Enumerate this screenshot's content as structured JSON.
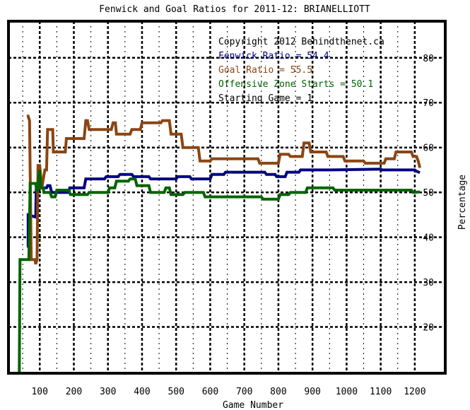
{
  "chart_data": {
    "type": "line",
    "title": "Fenwick and Goal Ratios for 2011-12: BRIANELLIOTT",
    "xlabel": "Game Number",
    "ylabel": "Percentage",
    "xlim": [
      0,
      1250
    ],
    "ylim": [
      10,
      88
    ],
    "x_ticks": [
      100,
      200,
      300,
      400,
      500,
      600,
      700,
      800,
      900,
      1000,
      1100,
      1200
    ],
    "y_ticks": [
      20,
      30,
      40,
      50,
      60,
      70,
      80
    ],
    "grid": true,
    "annotations": [
      {
        "text": "Copyright 2012 Behindthenet.ca",
        "color": "#000000"
      },
      {
        "text": "Fenwick Ratio = 54.4",
        "color": "#000080"
      },
      {
        "text": "Goal Ratio = 55.5",
        "color": "#8B4513"
      },
      {
        "text": "Offensive Zone Starts = 50.1",
        "color": "#006400"
      },
      {
        "text": "Starting Game = 1",
        "color": "#000000"
      }
    ],
    "series": [
      {
        "name": "Fenwick Ratio",
        "color": "#000080",
        "points": [
          [
            62,
            38
          ],
          [
            66,
            38
          ],
          [
            66,
            45
          ],
          [
            88,
            44.5
          ],
          [
            90,
            52
          ],
          [
            98,
            52
          ],
          [
            100,
            51
          ],
          [
            120,
            51
          ],
          [
            123,
            51.5
          ],
          [
            130,
            51.5
          ],
          [
            135,
            50
          ],
          [
            185,
            50
          ],
          [
            188,
            51
          ],
          [
            230,
            51
          ],
          [
            235,
            53
          ],
          [
            290,
            53
          ],
          [
            295,
            53.5
          ],
          [
            330,
            53.5
          ],
          [
            335,
            54
          ],
          [
            370,
            54
          ],
          [
            375,
            53.5
          ],
          [
            420,
            53.5
          ],
          [
            425,
            53
          ],
          [
            500,
            53
          ],
          [
            505,
            53.5
          ],
          [
            540,
            53.5
          ],
          [
            545,
            53
          ],
          [
            600,
            53
          ],
          [
            605,
            54
          ],
          [
            640,
            54
          ],
          [
            645,
            54.5
          ],
          [
            760,
            54.5
          ],
          [
            765,
            54
          ],
          [
            790,
            54
          ],
          [
            795,
            53.5
          ],
          [
            820,
            53.5
          ],
          [
            825,
            54.5
          ],
          [
            860,
            54.5
          ],
          [
            865,
            55
          ],
          [
            950,
            55
          ],
          [
            955,
            55
          ],
          [
            1100,
            55.2
          ],
          [
            1105,
            55
          ],
          [
            1200,
            55
          ],
          [
            1205,
            54.7
          ],
          [
            1215,
            54.4
          ]
        ]
      },
      {
        "name": "Goal Ratio",
        "color": "#8B4513",
        "points": [
          [
            62,
            67
          ],
          [
            66,
            67
          ],
          [
            70,
            66
          ],
          [
            75,
            35
          ],
          [
            82,
            35
          ],
          [
            86,
            35
          ],
          [
            88,
            34
          ],
          [
            92,
            35
          ],
          [
            95,
            56
          ],
          [
            100,
            56
          ],
          [
            106,
            51
          ],
          [
            115,
            55
          ],
          [
            120,
            55
          ],
          [
            123,
            64
          ],
          [
            138,
            64
          ],
          [
            140,
            59
          ],
          [
            175,
            59
          ],
          [
            178,
            62
          ],
          [
            230,
            62
          ],
          [
            235,
            66
          ],
          [
            240,
            66
          ],
          [
            245,
            64
          ],
          [
            310,
            64
          ],
          [
            315,
            65.5
          ],
          [
            322,
            65.5
          ],
          [
            325,
            63
          ],
          [
            365,
            63
          ],
          [
            370,
            64
          ],
          [
            395,
            64
          ],
          [
            400,
            65.5
          ],
          [
            455,
            65.5
          ],
          [
            460,
            66
          ],
          [
            480,
            66
          ],
          [
            485,
            63
          ],
          [
            515,
            63
          ],
          [
            520,
            60
          ],
          [
            565,
            60
          ],
          [
            570,
            57
          ],
          [
            600,
            57
          ],
          [
            605,
            57.5
          ],
          [
            740,
            57.5
          ],
          [
            745,
            56.5
          ],
          [
            800,
            56.5
          ],
          [
            805,
            58.5
          ],
          [
            830,
            58.5
          ],
          [
            835,
            58
          ],
          [
            870,
            58
          ],
          [
            875,
            61
          ],
          [
            890,
            61
          ],
          [
            895,
            59
          ],
          [
            940,
            59
          ],
          [
            945,
            58
          ],
          [
            990,
            58
          ],
          [
            995,
            57
          ],
          [
            1050,
            57
          ],
          [
            1055,
            56.5
          ],
          [
            1110,
            56.5
          ],
          [
            1115,
            57.5
          ],
          [
            1140,
            57.5
          ],
          [
            1145,
            59
          ],
          [
            1190,
            59
          ],
          [
            1195,
            58
          ],
          [
            1205,
            58
          ],
          [
            1210,
            57
          ],
          [
            1215,
            55.5
          ]
        ]
      },
      {
        "name": "Offensive Zone Starts",
        "color": "#006400",
        "points": [
          [
            40,
            0
          ],
          [
            42,
            35
          ],
          [
            68,
            35
          ],
          [
            72,
            52
          ],
          [
            88,
            52
          ],
          [
            92,
            50
          ],
          [
            95,
            52
          ],
          [
            100,
            55
          ],
          [
            103,
            51
          ],
          [
            110,
            51
          ],
          [
            112,
            50
          ],
          [
            130,
            50
          ],
          [
            135,
            49
          ],
          [
            145,
            49
          ],
          [
            150,
            50.5
          ],
          [
            185,
            50.5
          ],
          [
            190,
            49.5
          ],
          [
            240,
            49.5
          ],
          [
            245,
            50
          ],
          [
            300,
            50
          ],
          [
            305,
            51
          ],
          [
            320,
            51
          ],
          [
            325,
            52.5
          ],
          [
            360,
            52.5
          ],
          [
            365,
            53
          ],
          [
            380,
            53
          ],
          [
            385,
            51.5
          ],
          [
            420,
            51.5
          ],
          [
            425,
            50
          ],
          [
            465,
            50
          ],
          [
            470,
            51
          ],
          [
            480,
            51
          ],
          [
            485,
            49.5
          ],
          [
            520,
            49.5
          ],
          [
            525,
            50
          ],
          [
            580,
            50
          ],
          [
            585,
            49
          ],
          [
            750,
            49
          ],
          [
            755,
            48.5
          ],
          [
            800,
            48.5
          ],
          [
            805,
            49.5
          ],
          [
            830,
            49.5
          ],
          [
            835,
            50
          ],
          [
            880,
            50
          ],
          [
            885,
            51
          ],
          [
            960,
            51
          ],
          [
            965,
            50.5
          ],
          [
            1190,
            50.5
          ],
          [
            1195,
            50
          ],
          [
            1215,
            50.1
          ]
        ]
      }
    ]
  }
}
